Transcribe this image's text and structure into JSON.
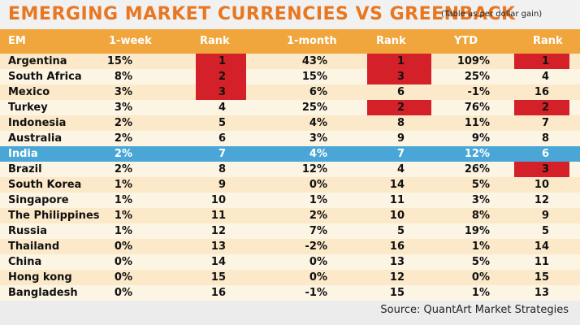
{
  "title": "EMERGING MARKET CURRENCIES VS GREENBACK",
  "subtitle": "(Table as per dollar gain)",
  "headers": [
    "EM",
    "1-week",
    "Rank",
    "1-month",
    "Rank",
    "YTD",
    "Rank"
  ],
  "rows": [
    {
      "em": "Argentina",
      "week": "15%",
      "week_rank": "1",
      "month": "43%",
      "month_rank": "1",
      "ytd": "109%",
      "ytd_rank": "1"
    },
    {
      "em": "South Africa",
      "week": "8%",
      "week_rank": "2",
      "month": "15%",
      "month_rank": "3",
      "ytd": "25%",
      "ytd_rank": "4"
    },
    {
      "em": "Mexico",
      "week": "3%",
      "week_rank": "3",
      "month": "6%",
      "month_rank": "6",
      "ytd": "-1%",
      "ytd_rank": "16"
    },
    {
      "em": "Turkey",
      "week": "3%",
      "week_rank": "4",
      "month": "25%",
      "month_rank": "2",
      "ytd": "76%",
      "ytd_rank": "2"
    },
    {
      "em": "Indonesia",
      "week": "2%",
      "week_rank": "5",
      "month": "4%",
      "month_rank": "8",
      "ytd": "11%",
      "ytd_rank": "7"
    },
    {
      "em": "Australia",
      "week": "2%",
      "week_rank": "6",
      "month": "3%",
      "month_rank": "9",
      "ytd": "9%",
      "ytd_rank": "8"
    },
    {
      "em": "India",
      "week": "2%",
      "week_rank": "7",
      "month": "4%",
      "month_rank": "7",
      "ytd": "12%",
      "ytd_rank": "6"
    },
    {
      "em": "Brazil",
      "week": "2%",
      "week_rank": "8",
      "month": "12%",
      "month_rank": "4",
      "ytd": "26%",
      "ytd_rank": "3"
    },
    {
      "em": "South Korea",
      "week": "1%",
      "week_rank": "9",
      "month": "0%",
      "month_rank": "14",
      "ytd": "5%",
      "ytd_rank": "10"
    },
    {
      "em": "Singapore",
      "week": "1%",
      "week_rank": "10",
      "month": "1%",
      "month_rank": "11",
      "ytd": "3%",
      "ytd_rank": "12"
    },
    {
      "em": "The Philippines",
      "week": "1%",
      "week_rank": "11",
      "month": "2%",
      "month_rank": "10",
      "ytd": "8%",
      "ytd_rank": "9"
    },
    {
      "em": "Russia",
      "week": "1%",
      "week_rank": "12",
      "month": "7%",
      "month_rank": "5",
      "ytd": "19%",
      "ytd_rank": "5"
    },
    {
      "em": "Thailand",
      "week": "0%",
      "week_rank": "13",
      "month": "-2%",
      "month_rank": "16",
      "ytd": "1%",
      "ytd_rank": "14"
    },
    {
      "em": "China",
      "week": "0%",
      "week_rank": "14",
      "month": "0%",
      "month_rank": "13",
      "ytd": "5%",
      "ytd_rank": "11"
    },
    {
      "em": "Hong kong",
      "week": "0%",
      "week_rank": "15",
      "month": "0%",
      "month_rank": "12",
      "ytd": "0%",
      "ytd_rank": "15"
    },
    {
      "em": "Bangladesh",
      "week": "0%",
      "week_rank": "16",
      "month": "-1%",
      "month_rank": "15",
      "ytd": "1%",
      "ytd_rank": "13"
    }
  ],
  "highlighted_row": "India",
  "source": "Source:  QuantArt Market Strategies",
  "colors": {
    "title": "#e87722",
    "header_bg": "#f0a63c",
    "row_odd": "#fbe9c9",
    "row_even": "#fdf5e3",
    "highlight": "#4aa6d6",
    "rank_box": "#d42028"
  }
}
